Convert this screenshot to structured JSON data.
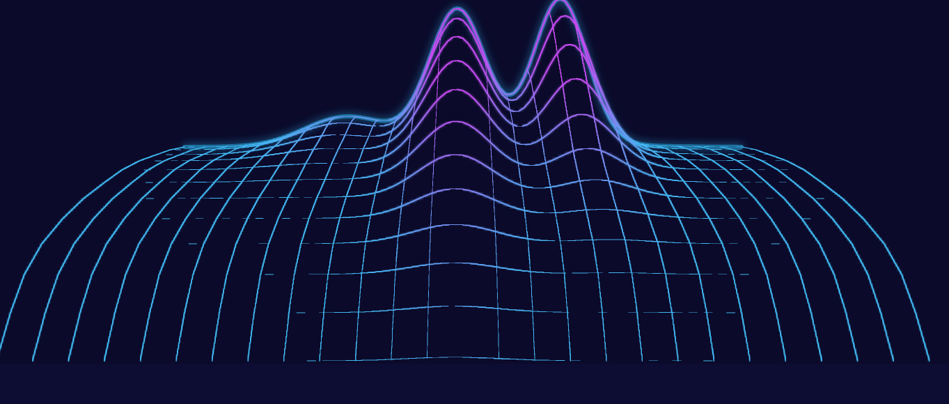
{
  "scene": {
    "subject": "wireframe-terrain",
    "palette": {
      "background": "#0b0a2a",
      "floor": "#0d0c33",
      "line_low": "#3fb8f0",
      "line_high": "#c44bf0",
      "glow": "#2fc6ff"
    }
  }
}
